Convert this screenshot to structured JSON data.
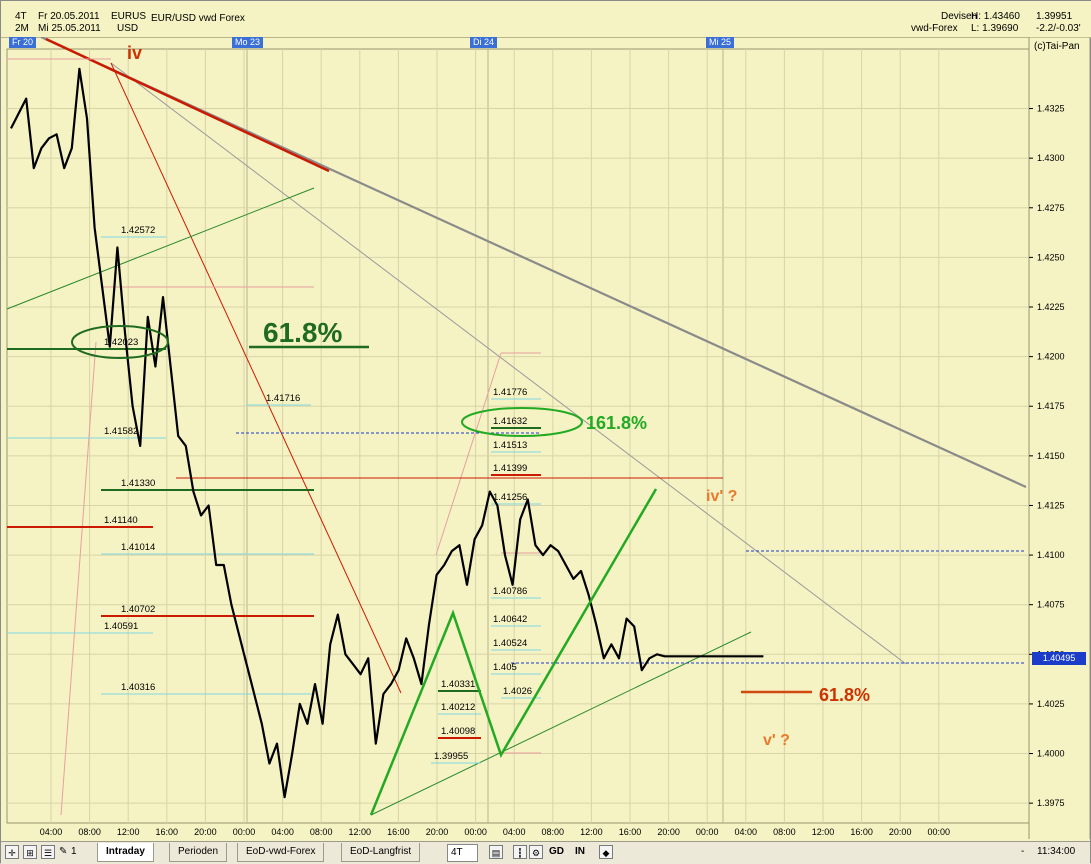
{
  "header": {
    "timeframe": "4T",
    "range": "2M",
    "date_from": "Fr 20.05.2011",
    "date_to": "Mi 25.05.2011",
    "symbol_line1": "EURUS",
    "symbol_line2": "USD",
    "instrument": "EUR/USD  vwd Forex",
    "source_line1": "Devisen",
    "source_line2": "vwd-Forex",
    "high": "H: 1.43460",
    "low": "L: 1.39690",
    "last": "1.39951",
    "change": "-2.2/-0.03'",
    "copyright": "(c)Tai-Pan"
  },
  "day_labels": [
    "Fr 20",
    "Mo 23",
    "Di 24",
    "Mi 25"
  ],
  "cursor_price": "1.40495",
  "toolbar": {
    "tabs": [
      "Intraday",
      "Perioden",
      "EoD-vwd-Forex",
      "EoD-Langfrist"
    ],
    "active_tab": "Intraday",
    "period_select": "4T",
    "btn_gd": "GD",
    "btn_in": "IN",
    "btn_one": "1",
    "time_right": "11:34:00",
    "time_dash": "-"
  },
  "colors": {
    "background": "#f5f2c3",
    "price_line": "#000000",
    "green_fib": "#1f6b1f",
    "red_fib": "#cc1a00",
    "cyan_fib": "#7fd8e0",
    "orange_label": "#e87a2e",
    "bright_green": "#22aa22",
    "trend_gray": "#808080",
    "axis_badge": "#1a3cc8"
  },
  "chart_data": {
    "type": "line",
    "title": "EUR/USD vwd Forex",
    "xlabel": "",
    "ylabel": "",
    "ylim": [
      1.3965,
      1.4355
    ],
    "grid": true,
    "y_ticks": [
      1.3975,
      1.4,
      1.4025,
      1.405,
      1.4075,
      1.41,
      1.4125,
      1.415,
      1.4175,
      1.42,
      1.4225,
      1.425,
      1.4275,
      1.43,
      1.4325
    ],
    "x_tick_labels": [
      "04:00",
      "08:00",
      "12:00",
      "16:00",
      "20:00",
      "00:00",
      "04:00",
      "08:00",
      "12:00",
      "16:00",
      "20:00",
      "00:00",
      "04:00",
      "08:00",
      "12:00",
      "16:00",
      "20:00",
      "00:00",
      "04:00",
      "08:00",
      "12:00",
      "16:00",
      "20:00",
      "00:00"
    ],
    "series": [
      {
        "name": "EUR/USD",
        "x_hours": [
          0,
          2,
          3,
          4,
          5,
          6,
          7,
          8,
          9,
          10,
          11,
          12,
          13,
          14,
          15,
          16,
          17,
          18,
          19,
          20,
          21,
          22,
          23,
          24,
          25,
          26,
          27,
          28,
          29,
          30,
          31,
          32,
          33,
          34,
          35,
          36,
          37,
          38,
          39,
          40,
          41,
          42,
          43,
          44,
          45,
          46,
          47,
          48,
          49,
          50,
          51,
          52,
          53,
          54,
          55,
          56,
          57,
          58,
          59,
          60,
          61,
          62,
          63,
          64,
          65,
          66,
          67,
          68,
          69,
          70,
          71,
          72,
          73,
          74,
          75,
          76,
          77,
          78,
          79,
          80,
          81,
          82,
          83,
          84,
          85,
          86,
          87,
          88,
          89,
          90,
          91,
          92,
          93,
          94,
          95,
          96,
          97,
          98,
          99
        ],
        "values": [
          1.4315,
          1.433,
          1.4295,
          1.4305,
          1.431,
          1.4312,
          1.4295,
          1.4305,
          1.4345,
          1.432,
          1.4265,
          1.4235,
          1.4205,
          1.4255,
          1.4212,
          1.4175,
          1.4155,
          1.422,
          1.4195,
          1.423,
          1.4195,
          1.416,
          1.4155,
          1.4132,
          1.412,
          1.4125,
          1.4095,
          1.4095,
          1.4075,
          1.406,
          1.4045,
          1.403,
          1.4015,
          1.3995,
          1.4005,
          1.3978,
          1.4,
          1.4025,
          1.4015,
          1.4035,
          1.4015,
          1.4055,
          1.407,
          1.405,
          1.4045,
          1.404,
          1.4048,
          1.4005,
          1.403,
          1.4035,
          1.4042,
          1.4058,
          1.4048,
          1.4035,
          1.4065,
          1.409,
          1.4095,
          1.4102,
          1.4105,
          1.4085,
          1.4108,
          1.4115,
          1.4132,
          1.4125,
          1.41,
          1.4085,
          1.4118,
          1.4128,
          1.4105,
          1.41,
          1.4105,
          1.4102,
          1.4095,
          1.4088,
          1.4092,
          1.408,
          1.4065,
          1.4048,
          1.4055,
          1.4048,
          1.4068,
          1.4064,
          1.4042,
          1.4048,
          1.405,
          1.4049,
          1.4049,
          1.4049,
          1.4049,
          1.4049,
          1.4049,
          1.4049,
          1.4049,
          1.4049,
          1.4049,
          1.4049,
          1.4049,
          1.4049,
          1.4049
        ]
      }
    ],
    "fib_levels": [
      {
        "value": "1.42572",
        "color": "cyan"
      },
      {
        "value": "1.42023",
        "color": "green"
      },
      {
        "value": "1.41716",
        "color": "cyan"
      },
      {
        "value": "1.41582",
        "color": "cyan"
      },
      {
        "value": "1.41330",
        "color": "green"
      },
      {
        "value": "1.41140",
        "color": "red"
      },
      {
        "value": "1.41014",
        "color": "cyan"
      },
      {
        "value": "1.40702",
        "color": "red"
      },
      {
        "value": "1.40591",
        "color": "cyan"
      },
      {
        "value": "1.40316",
        "color": "cyan"
      },
      {
        "value": "1.41776",
        "color": "cyan"
      },
      {
        "value": "1.41632",
        "color": "green"
      },
      {
        "value": "1.41513",
        "color": "cyan"
      },
      {
        "value": "1.41399",
        "color": "red"
      },
      {
        "value": "1.41256",
        "color": "cyan"
      },
      {
        "value": "1.40786",
        "color": "cyan"
      },
      {
        "value": "1.40642",
        "color": "cyan"
      },
      {
        "value": "1.40524",
        "color": "cyan"
      },
      {
        "value": "1.405",
        "color": "cyan"
      },
      {
        "value": "1.40331",
        "color": "green"
      },
      {
        "value": "1.40212",
        "color": "cyan"
      },
      {
        "value": "1.40098",
        "color": "red"
      },
      {
        "value": "1.39955",
        "color": "cyan"
      },
      {
        "value": "1.4026",
        "color": "cyan"
      }
    ],
    "annotations": [
      {
        "text": "iv",
        "color": "red"
      },
      {
        "text": "61.8%",
        "color": "green"
      },
      {
        "text": "161.8%",
        "color": "green"
      },
      {
        "text": "iv' ?",
        "color": "orange"
      },
      {
        "text": "61.8%",
        "color": "red"
      },
      {
        "text": "v' ?",
        "color": "orange"
      }
    ]
  }
}
